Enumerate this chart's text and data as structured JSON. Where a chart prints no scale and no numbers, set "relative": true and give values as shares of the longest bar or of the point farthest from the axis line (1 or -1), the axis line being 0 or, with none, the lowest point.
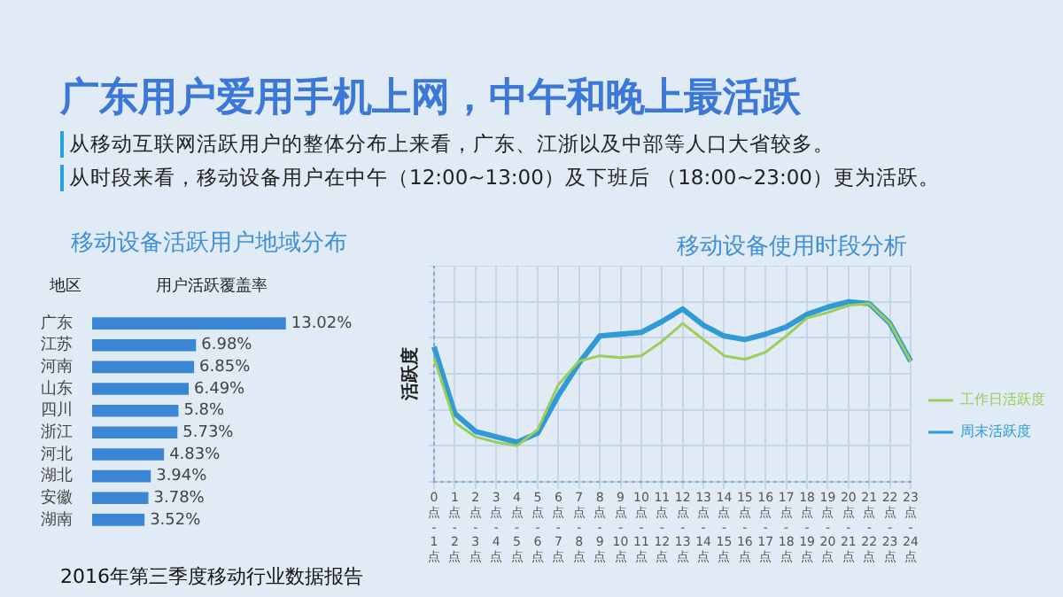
{
  "chart_data": [
    {
      "type": "other",
      "title": "广东用户爱用手机上网，中午和晚上最活跃",
      "annotations": [
        "从移动互联网活跃用户的整体分布上来看，广东、江浙以及中部等人口大省较多。",
        "从时段来看，移动设备用户在中午（12:00~13:00）及下班后 （18:00~23:00）更为活跃。",
        "2016年第三季度移动行业数据报告"
      ]
    },
    {
      "type": "bar",
      "orientation": "horizontal",
      "title": "移动设备活跃用户地域分布",
      "ylabel": "地区",
      "xlabel": "用户活跃覆盖率",
      "categories": [
        "广东",
        "江苏",
        "河南",
        "山东",
        "四川",
        "浙江",
        "河北",
        "湖北",
        "安徽",
        "湖南"
      ],
      "values": [
        13.02,
        6.98,
        6.85,
        6.49,
        5.8,
        5.73,
        4.83,
        3.94,
        3.78,
        3.52
      ],
      "value_labels": [
        "13.02%",
        "6.98%",
        "6.85%",
        "6.49%",
        "5.8%",
        "5.73%",
        "4.83%",
        "3.94%",
        "3.78%",
        "3.52%"
      ],
      "color": "#3a86d4"
    },
    {
      "type": "line",
      "title": "移动设备使用时段分析",
      "ylabel": "活跃度",
      "relative": true,
      "grid": true,
      "legend": "right",
      "categories": [
        "0点-1点",
        "1点-2点",
        "2点-3点",
        "3点-4点",
        "4点-5点",
        "5点-6点",
        "6点-7点",
        "7点-8点",
        "8点-9点",
        "9点-10点",
        "10点-11点",
        "11点-12点",
        "12点-13点",
        "13点-14点",
        "14点-15点",
        "15点-16点",
        "16点-17点",
        "17点-18点",
        "18点-19点",
        "19点-20点",
        "20点-21点",
        "21点-22点",
        "22点-23点",
        "23点-24点"
      ],
      "series": [
        {
          "name": "工作日活跃度",
          "color": "#9acd5a",
          "values": [
            0.69,
            0.33,
            0.25,
            0.22,
            0.2,
            0.29,
            0.54,
            0.67,
            0.7,
            0.69,
            0.7,
            0.78,
            0.88,
            0.79,
            0.7,
            0.68,
            0.72,
            0.81,
            0.91,
            0.94,
            0.98,
            0.99,
            0.88,
            0.67
          ]
        },
        {
          "name": "周末活跃度",
          "color": "#2f9ad6",
          "values": [
            0.75,
            0.38,
            0.28,
            0.25,
            0.22,
            0.27,
            0.48,
            0.66,
            0.81,
            0.82,
            0.83,
            0.89,
            0.96,
            0.87,
            0.81,
            0.79,
            0.82,
            0.86,
            0.93,
            0.97,
            1,
            0.99,
            0.88,
            0.67
          ]
        }
      ]
    }
  ]
}
